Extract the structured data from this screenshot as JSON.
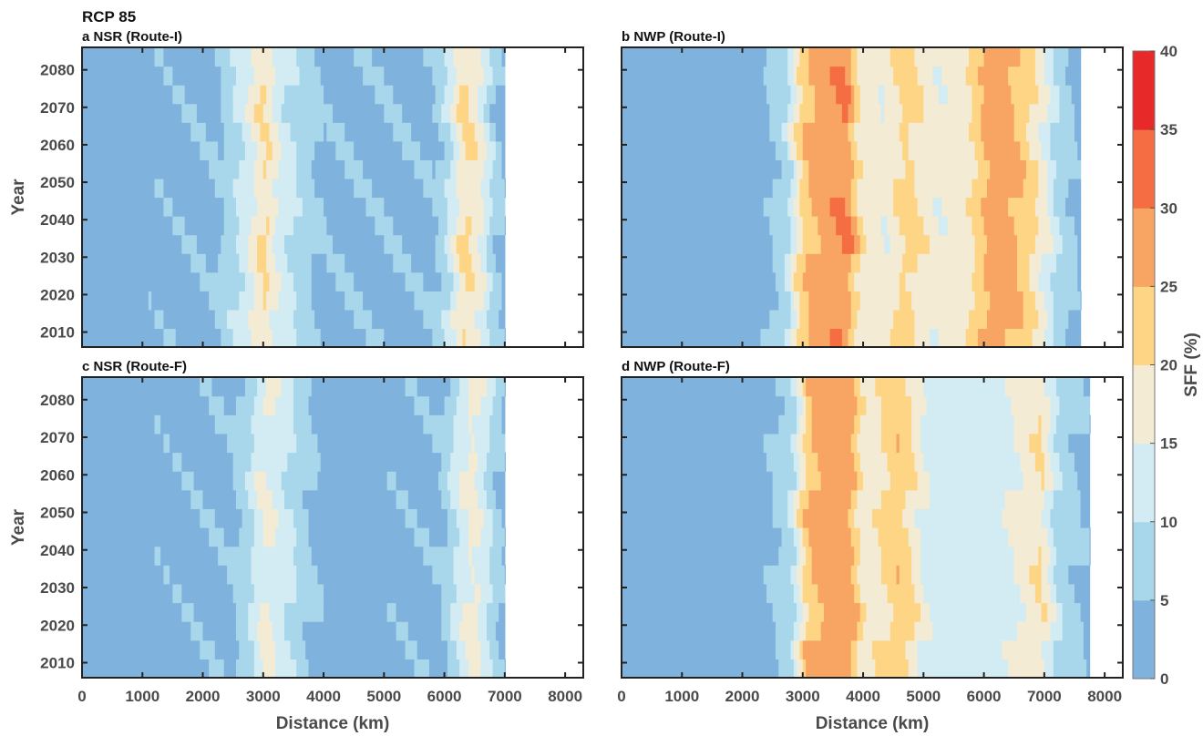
{
  "figure": {
    "scenario_title": "RCP 85",
    "xlabel": "Distance (km)",
    "ylabel": "Year",
    "colorbar_label": "SFF (%)"
  },
  "colors": {
    "levels": [
      "#7fb2dc",
      "#a8d6ea",
      "#d3ecf4",
      "#f3ebd3",
      "#fdd585",
      "#f8a564",
      "#f46d43",
      "#e8292a"
    ],
    "frame": "#222222",
    "tick_text": "#4a4a4a"
  },
  "chart_data": [
    {
      "type": "heatmap",
      "panel": "a",
      "title": "a  NSR (Route-I)",
      "x_unit": "km",
      "xlim": [
        0,
        8300
      ],
      "ylim": [
        2006,
        2086
      ],
      "x_ticks": [
        0,
        1000,
        2000,
        3000,
        4000,
        5000,
        6000,
        7000,
        8000
      ],
      "y_ticks": [
        2010,
        2020,
        2030,
        2040,
        2050,
        2060,
        2070,
        2080
      ],
      "colorbar_levels": [
        0,
        5,
        10,
        15,
        20,
        25,
        30,
        35,
        40
      ],
      "route_end_km": 7000,
      "sff_profile": [
        {
          "distance_km": 0,
          "sff_percent": 3
        },
        {
          "distance_km": 2200,
          "sff_percent": 4
        },
        {
          "distance_km": 2500,
          "sff_percent": 9
        },
        {
          "distance_km": 2750,
          "sff_percent": 14
        },
        {
          "distance_km": 3000,
          "sff_percent": 21
        },
        {
          "distance_km": 3250,
          "sff_percent": 13
        },
        {
          "distance_km": 3600,
          "sff_percent": 8
        },
        {
          "distance_km": 4000,
          "sff_percent": 4
        },
        {
          "distance_km": 5800,
          "sff_percent": 4
        },
        {
          "distance_km": 6100,
          "sff_percent": 12
        },
        {
          "distance_km": 6300,
          "sff_percent": 21
        },
        {
          "distance_km": 6550,
          "sff_percent": 17
        },
        {
          "distance_km": 6800,
          "sff_percent": 7
        },
        {
          "distance_km": 7000,
          "sff_percent": 3
        }
      ]
    },
    {
      "type": "heatmap",
      "panel": "b",
      "title": "b  NWP (Route-I)",
      "x_unit": "km",
      "xlim": [
        0,
        8300
      ],
      "ylim": [
        2006,
        2086
      ],
      "x_ticks": [
        0,
        1000,
        2000,
        3000,
        4000,
        5000,
        6000,
        7000,
        8000
      ],
      "y_ticks": [
        2010,
        2020,
        2030,
        2040,
        2050,
        2060,
        2070,
        2080
      ],
      "colorbar_levels": [
        0,
        5,
        10,
        15,
        20,
        25,
        30,
        35,
        40
      ],
      "route_end_km": 7600,
      "sff_profile": [
        {
          "distance_km": 0,
          "sff_percent": 3
        },
        {
          "distance_km": 2300,
          "sff_percent": 3
        },
        {
          "distance_km": 2700,
          "sff_percent": 8
        },
        {
          "distance_km": 2950,
          "sff_percent": 22
        },
        {
          "distance_km": 3200,
          "sff_percent": 27
        },
        {
          "distance_km": 3700,
          "sff_percent": 30
        },
        {
          "distance_km": 3950,
          "sff_percent": 18
        },
        {
          "distance_km": 4300,
          "sff_percent": 16
        },
        {
          "distance_km": 4700,
          "sff_percent": 22
        },
        {
          "distance_km": 5200,
          "sff_percent": 16
        },
        {
          "distance_km": 5700,
          "sff_percent": 18
        },
        {
          "distance_km": 6100,
          "sff_percent": 28
        },
        {
          "distance_km": 6500,
          "sff_percent": 26
        },
        {
          "distance_km": 6900,
          "sff_percent": 18
        },
        {
          "distance_km": 7200,
          "sff_percent": 9
        },
        {
          "distance_km": 7600,
          "sff_percent": 3
        }
      ]
    },
    {
      "type": "heatmap",
      "panel": "c",
      "title": "c  NSR (Route-F)",
      "x_unit": "km",
      "xlim": [
        0,
        8300
      ],
      "ylim": [
        2006,
        2086
      ],
      "x_ticks": [
        0,
        1000,
        2000,
        3000,
        4000,
        5000,
        6000,
        7000,
        8000
      ],
      "y_ticks": [
        2010,
        2020,
        2030,
        2040,
        2050,
        2060,
        2070,
        2080
      ],
      "colorbar_levels": [
        0,
        5,
        10,
        15,
        20,
        25,
        30,
        35,
        40
      ],
      "route_end_km": 7000,
      "sff_profile": [
        {
          "distance_km": 0,
          "sff_percent": 3
        },
        {
          "distance_km": 2400,
          "sff_percent": 4
        },
        {
          "distance_km": 2700,
          "sff_percent": 8
        },
        {
          "distance_km": 3000,
          "sff_percent": 16
        },
        {
          "distance_km": 3300,
          "sff_percent": 12
        },
        {
          "distance_km": 3700,
          "sff_percent": 6
        },
        {
          "distance_km": 4000,
          "sff_percent": 3
        },
        {
          "distance_km": 5900,
          "sff_percent": 4
        },
        {
          "distance_km": 6200,
          "sff_percent": 12
        },
        {
          "distance_km": 6450,
          "sff_percent": 17
        },
        {
          "distance_km": 6750,
          "sff_percent": 9
        },
        {
          "distance_km": 7000,
          "sff_percent": 3
        }
      ]
    },
    {
      "type": "heatmap",
      "panel": "d",
      "title": "d  NWP (Route-F)",
      "x_unit": "km",
      "xlim": [
        0,
        8300
      ],
      "ylim": [
        2006,
        2086
      ],
      "x_ticks": [
        0,
        1000,
        2000,
        3000,
        4000,
        5000,
        6000,
        7000,
        8000
      ],
      "y_ticks": [
        2010,
        2020,
        2030,
        2040,
        2050,
        2060,
        2070,
        2080
      ],
      "colorbar_levels": [
        0,
        5,
        10,
        15,
        20,
        25,
        30,
        35,
        40
      ],
      "route_end_km": 7750,
      "sff_profile": [
        {
          "distance_km": 0,
          "sff_percent": 3
        },
        {
          "distance_km": 2300,
          "sff_percent": 3
        },
        {
          "distance_km": 2800,
          "sff_percent": 9
        },
        {
          "distance_km": 3050,
          "sff_percent": 24
        },
        {
          "distance_km": 3400,
          "sff_percent": 28
        },
        {
          "distance_km": 3750,
          "sff_percent": 28
        },
        {
          "distance_km": 4000,
          "sff_percent": 16
        },
        {
          "distance_km": 4600,
          "sff_percent": 24
        },
        {
          "distance_km": 5000,
          "sff_percent": 14
        },
        {
          "distance_km": 5500,
          "sff_percent": 12
        },
        {
          "distance_km": 6200,
          "sff_percent": 12
        },
        {
          "distance_km": 6900,
          "sff_percent": 20
        },
        {
          "distance_km": 7200,
          "sff_percent": 9
        },
        {
          "distance_km": 7750,
          "sff_percent": 3
        }
      ]
    }
  ]
}
